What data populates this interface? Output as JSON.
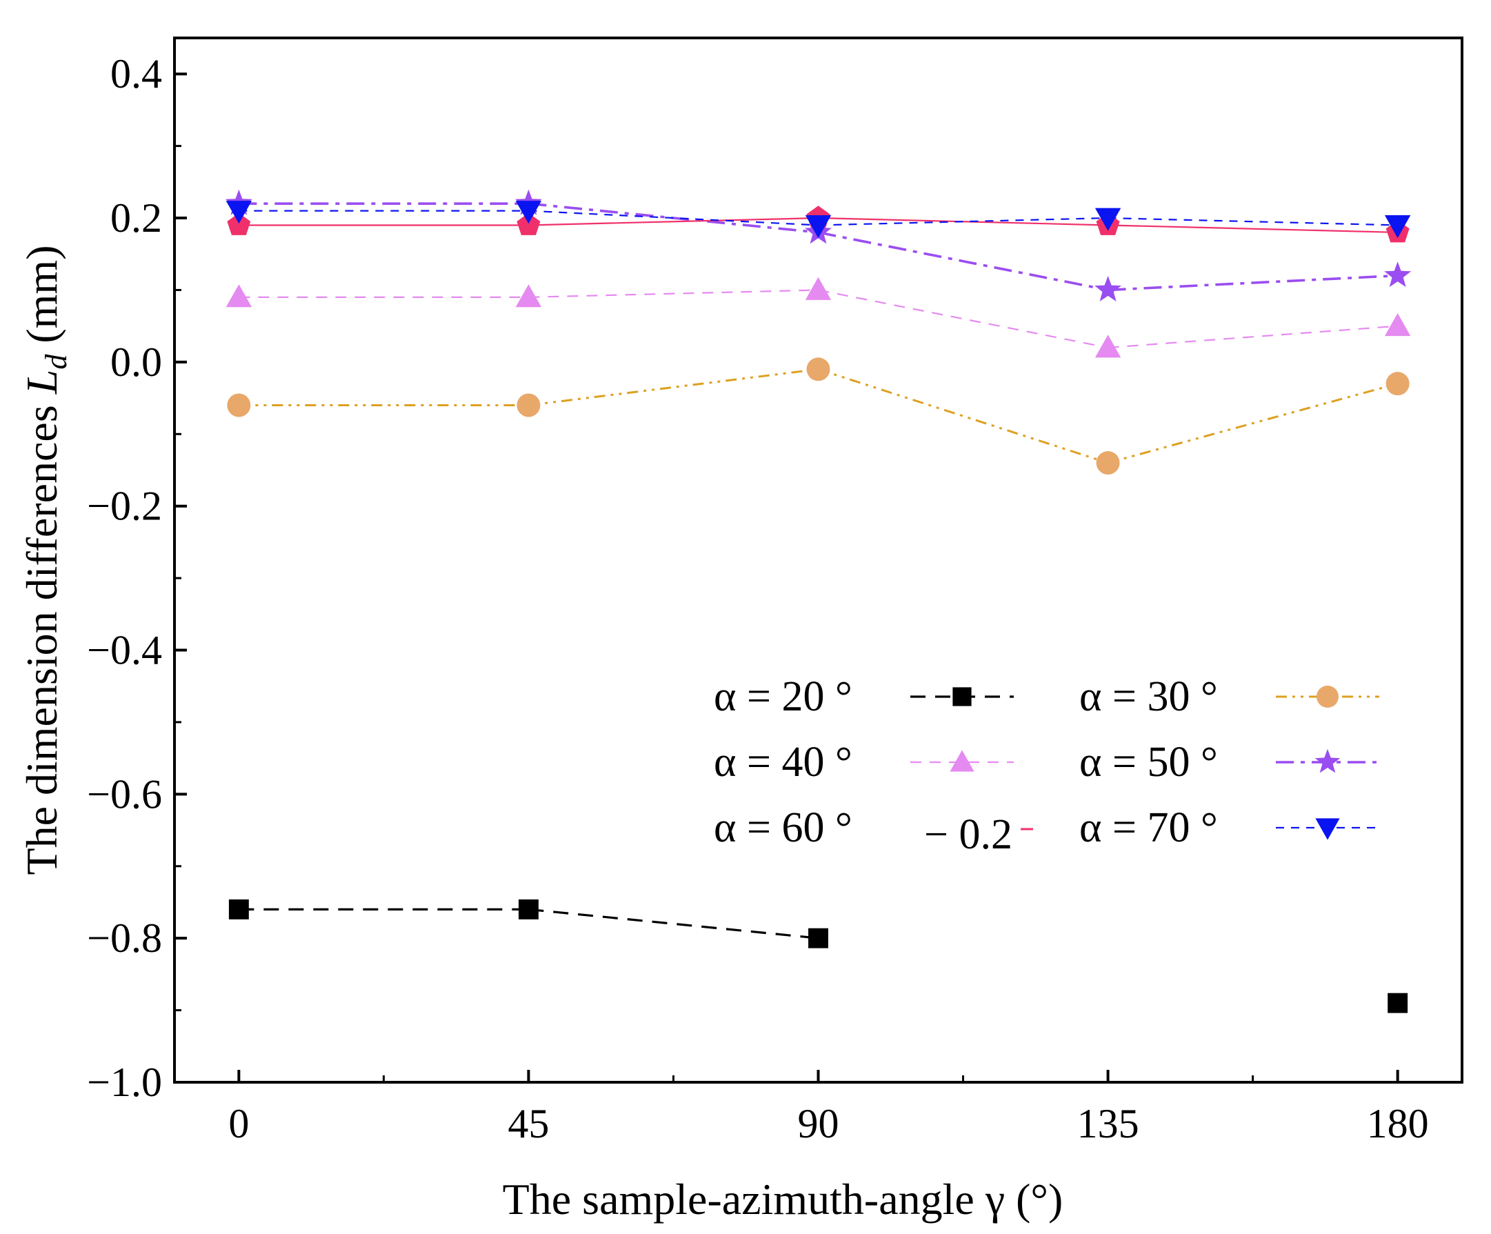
{
  "chart_data": {
    "type": "line",
    "xlabel": "The sample-azimuth-angle γ (°)",
    "ylabel": {
      "prefix": "The dimension differences ",
      "symbol": "L",
      "subscript": "d",
      "unit": " (mm)"
    },
    "x": [
      0,
      45,
      90,
      135,
      180
    ],
    "x_tick_labels": [
      "0",
      "45",
      "90",
      "135",
      "180"
    ],
    "xlim": [
      -10,
      190
    ],
    "ylim": [
      -1.0,
      0.45
    ],
    "y_ticks": [
      0.4,
      0.2,
      0.0,
      -0.2,
      -0.4,
      -0.6,
      -0.8,
      -1.0
    ],
    "y_tick_labels": [
      "0.4",
      "0.2",
      "0.0",
      "−0.2",
      "−0.4",
      "−0.6",
      "−0.8",
      "−1.0"
    ],
    "legend_position": "lower-right",
    "series": [
      {
        "name": "α = 20 °",
        "color": "#000000",
        "marker": "square",
        "linestyle": "dashed",
        "values": [
          -0.76,
          -0.76,
          -0.8,
          null,
          -0.89
        ]
      },
      {
        "name": "α = 30 °",
        "color": "#E8A86A",
        "line_color": "#DDA020",
        "marker": "circle",
        "linestyle": "dash-dot-dot",
        "values": [
          -0.06,
          -0.06,
          -0.01,
          -0.14,
          -0.03
        ]
      },
      {
        "name": "α = 40 °",
        "color": "#E58AF0",
        "marker": "triangle-up",
        "linestyle": "dashed-thin",
        "values": [
          0.09,
          0.09,
          0.1,
          0.02,
          0.05
        ]
      },
      {
        "name": "α = 50 °",
        "color": "#9A4DF0",
        "marker": "star",
        "linestyle": "dash-dot",
        "values": [
          0.22,
          0.22,
          0.18,
          0.1,
          0.12
        ]
      },
      {
        "name": "α = 60 °",
        "color": "#F0306A",
        "marker": "pentagon",
        "linestyle": "solid",
        "values": [
          0.19,
          0.19,
          0.2,
          0.19,
          0.18
        ]
      },
      {
        "name": "α = 70 °",
        "color": "#0A14F0",
        "marker": "triangle-down",
        "linestyle": "dashed-fine",
        "values": [
          0.21,
          0.21,
          0.19,
          0.2,
          0.19
        ]
      }
    ],
    "legend_artifact_label": "− 0.2"
  }
}
